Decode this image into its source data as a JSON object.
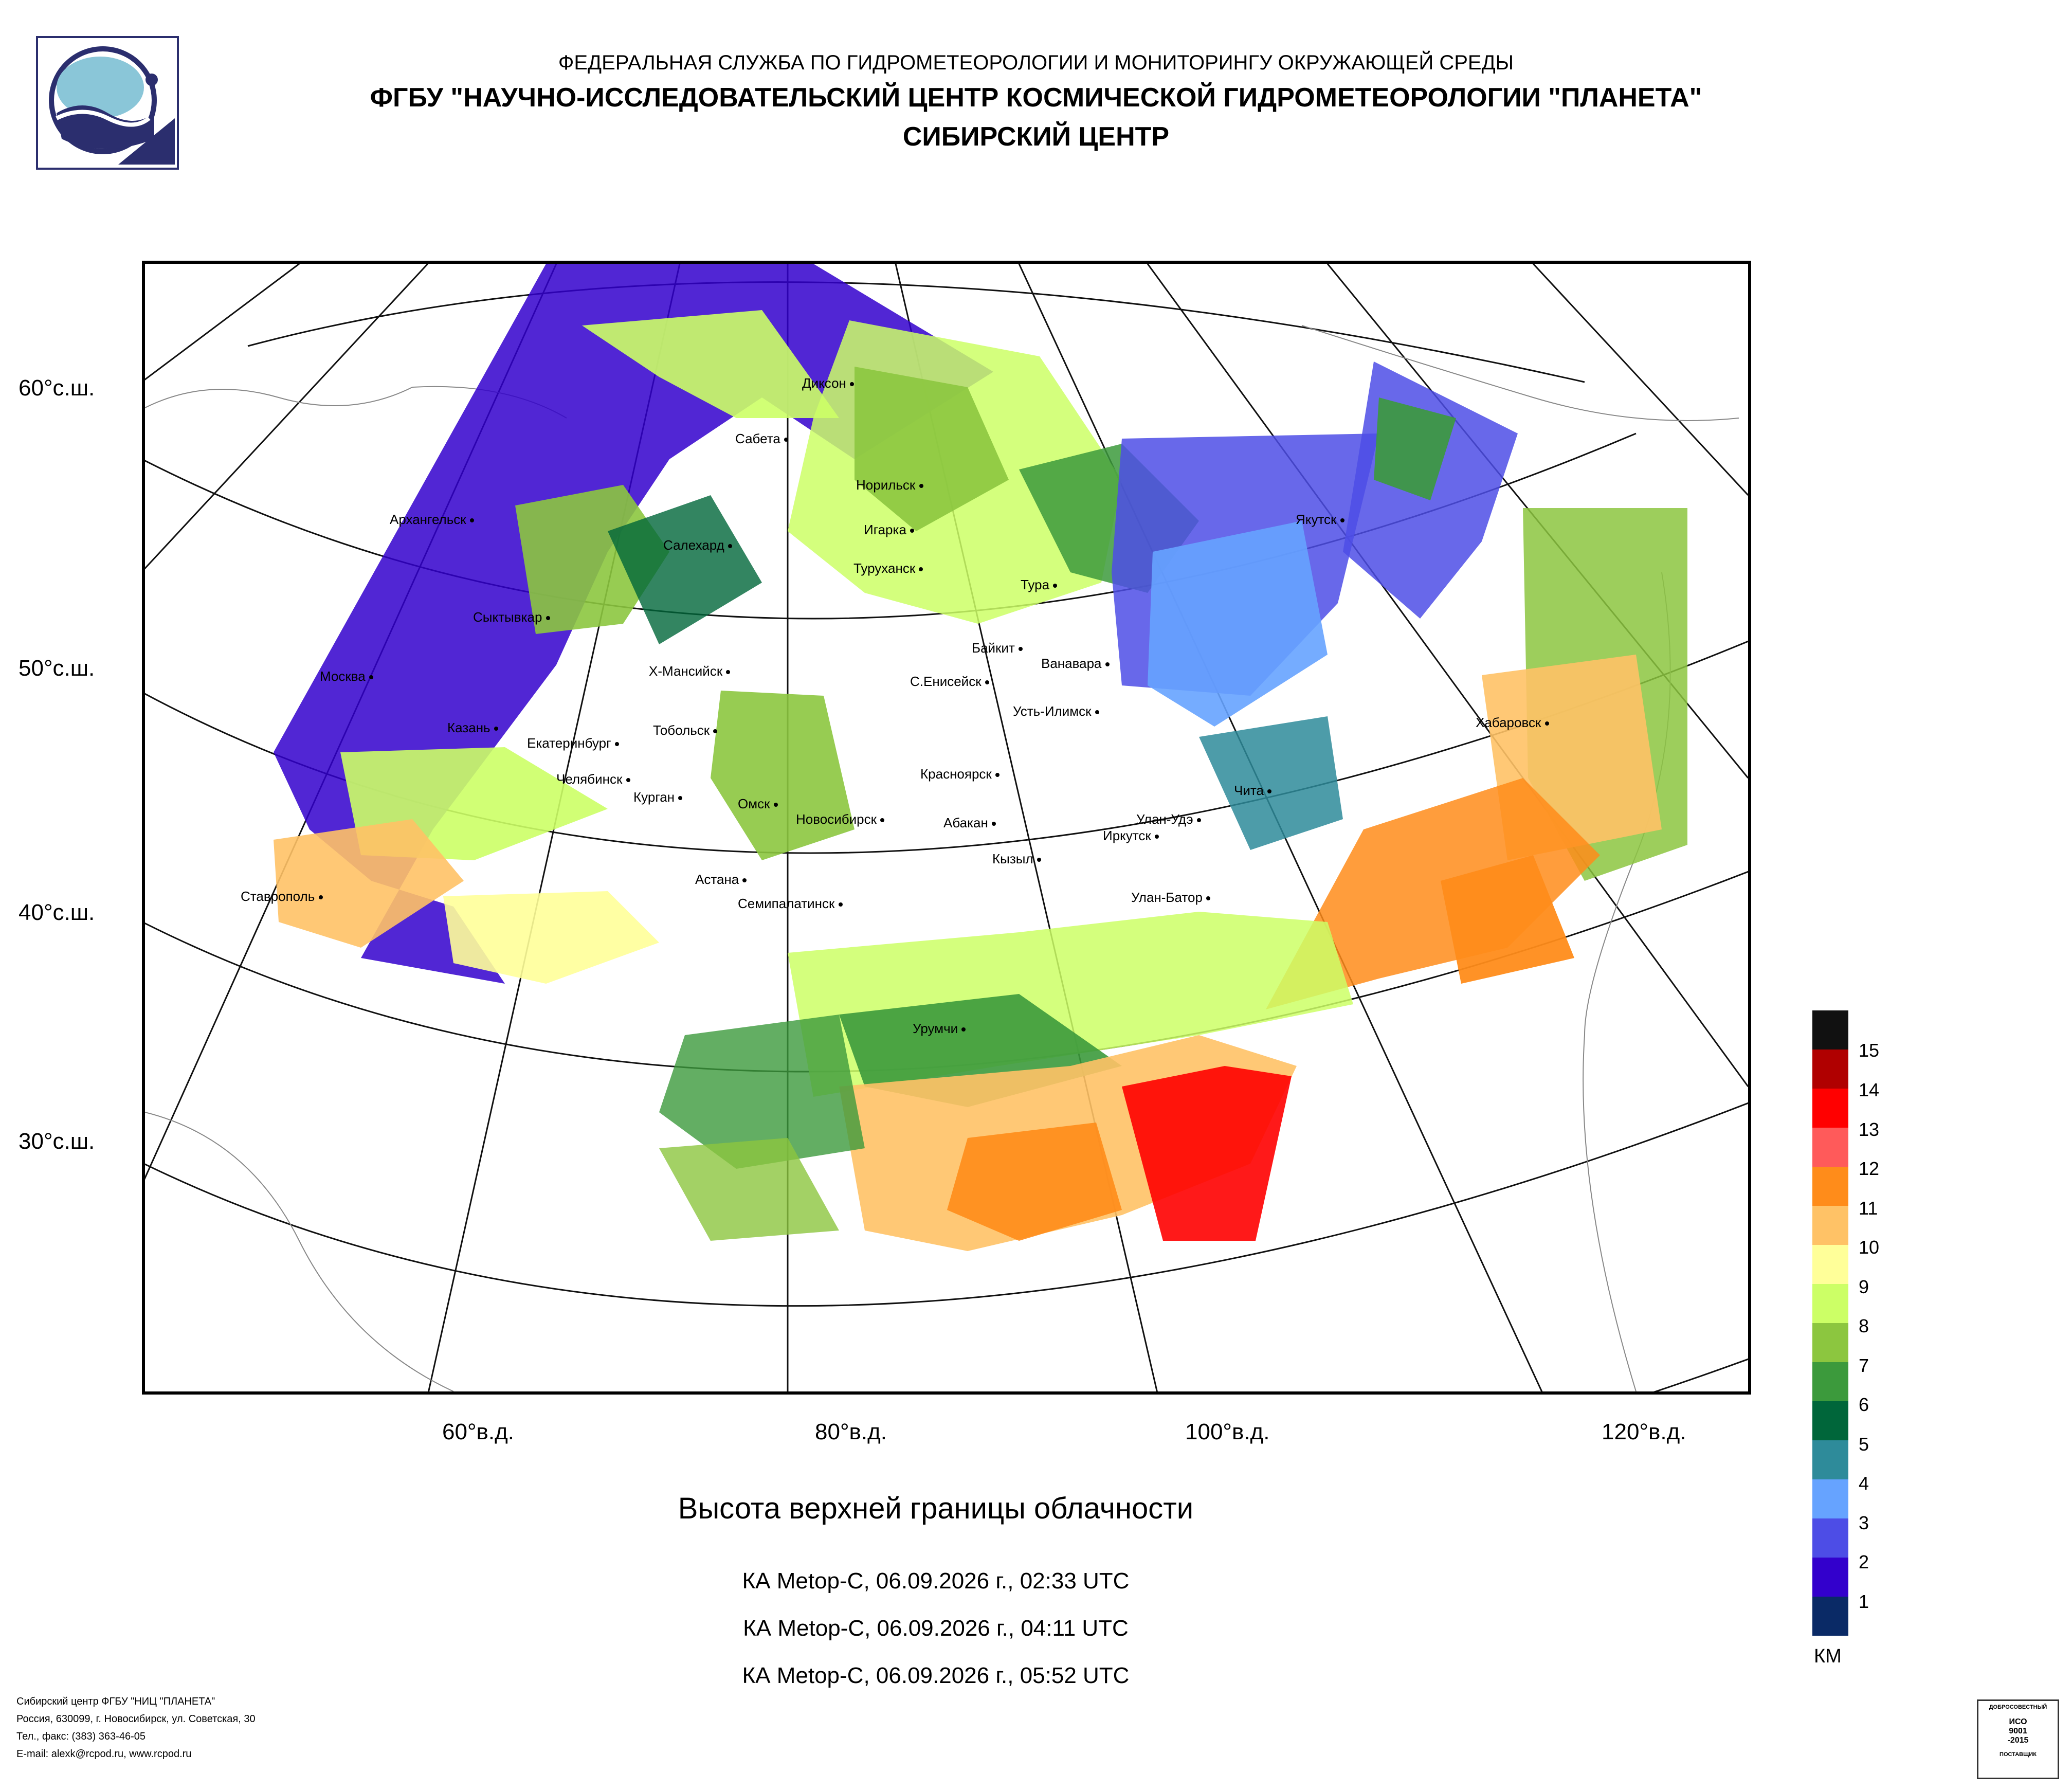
{
  "header": {
    "line1": "ФЕДЕРАЛЬНАЯ СЛУЖБА ПО ГИДРОМЕТЕОРОЛОГИИ И МОНИТОРИНГУ ОКРУЖАЮЩЕЙ СРЕДЫ",
    "line2": "ФГБУ \"НАУЧНО-ИССЛЕДОВАТЕЛЬСКИЙ ЦЕНТР КОСМИЧЕСКОЙ ГИДРОМЕТЕОРОЛОГИИ \"ПЛАНЕТА\"",
    "line3": "СИБИРСКИЙ ЦЕНТР"
  },
  "map": {
    "lat_labels": [
      "60°с.ш.",
      "50°с.ш.",
      "40°с.ш.",
      "30°с.ш."
    ],
    "lon_labels": [
      "60°в.д.",
      "80°в.д.",
      "100°в.д.",
      "120°в.д."
    ],
    "cities": [
      "Диксон",
      "Сабета",
      "Норильск",
      "Игарка",
      "Архангельск",
      "Салехард",
      "Туруханск",
      "Тура",
      "Якутск",
      "Сыктывкар",
      "Байкит",
      "Ванавара",
      "Москва",
      "Х-Мансийск",
      "С.Енисейск",
      "Усть-Илимск",
      "Хабаровск",
      "Казань",
      "Тобольск",
      "Екатеринбург",
      "Челябинск",
      "Курган",
      "Красноярск",
      "Чита",
      "Омск",
      "Новосибирск",
      "Абакан",
      "Улан-Удэ",
      "Иркутск",
      "Кызыл",
      "Ставрополь",
      "Астана",
      "Улан-Батор",
      "Семипалатинск",
      "Урумчи"
    ]
  },
  "caption": {
    "title": "Высота верхней границы облачности",
    "passes": [
      "КА Metop-C, 06.09.2026 г., 02:33 UTC",
      "КА Metop-C, 06.09.2026 г., 04:11 UTC",
      "КА Metop-C, 06.09.2026 г., 05:52 UTC"
    ]
  },
  "legend": {
    "unit": "КМ",
    "levels": [
      "15",
      "14",
      "13",
      "12",
      "11",
      "10",
      "9",
      "8",
      "7",
      "6",
      "5",
      "4",
      "3",
      "2",
      "1"
    ],
    "colors": [
      "#111111",
      "#b00000",
      "#ff0000",
      "#ff5a5a",
      "#ff8c1a",
      "#ffc266",
      "#ffff99",
      "#ccff66",
      "#8cc63f",
      "#3c9a3c",
      "#00663a",
      "#2e8b9a",
      "#66a3ff",
      "#4d4de6",
      "#3300cc",
      "#0a2a66"
    ]
  },
  "footer": {
    "lines": [
      "Сибирский центр ФГБУ \"НИЦ \"ПЛАНЕТА\"",
      "Россия, 630099, г. Новосибирск, ул. Советская, 30",
      "Тел., факс: (383) 363-46-05",
      "E-mail: alexk@rcpod.ru, www.rcpod.ru"
    ]
  },
  "iso_badge": {
    "top": "ДОБРОСОВЕСТНЫЙ",
    "mid1": "ИСО",
    "mid2": "9001",
    "mid3": "-2015",
    "bottom": "ПОСТАВЩИК"
  }
}
